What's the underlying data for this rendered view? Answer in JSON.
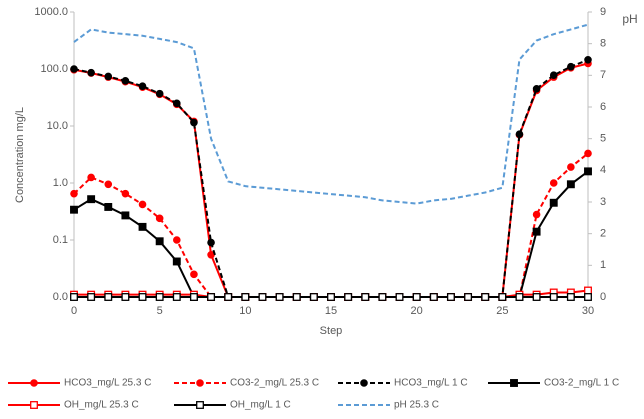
{
  "chart_data": {
    "type": "line",
    "y_label": "Concentration mg/L",
    "y2_label": "pH",
    "x_label": "Step",
    "x": [
      0,
      1,
      2,
      3,
      4,
      5,
      6,
      7,
      8,
      9,
      10,
      11,
      12,
      13,
      14,
      15,
      16,
      17,
      18,
      19,
      20,
      21,
      22,
      23,
      24,
      25,
      26,
      27,
      28,
      29,
      30
    ],
    "xlim": [
      0,
      30
    ],
    "xticks": [
      0,
      5,
      10,
      15,
      20,
      25,
      30
    ],
    "ylim": [
      0.01,
      1000
    ],
    "log_y": true,
    "yticks": [
      {
        "value": 0.01,
        "label": "0.0"
      },
      {
        "value": 0.1,
        "label": "0.1"
      },
      {
        "value": 1,
        "label": "1.0"
      },
      {
        "value": 10,
        "label": "10.0"
      },
      {
        "value": 100,
        "label": "100.0"
      },
      {
        "value": 1000,
        "label": "1000.0"
      }
    ],
    "y2lim": [
      0,
      9
    ],
    "y2ticks": [
      0,
      1,
      2,
      3,
      4,
      5,
      6,
      7,
      8,
      9
    ],
    "series": [
      {
        "name": "HCO3_mg/L 25.3 C",
        "color": "#ff0000",
        "dash": false,
        "marker": "circle",
        "marker_open": false,
        "values": [
          97,
          85,
          72,
          60,
          48,
          36,
          24,
          12,
          0.055,
          0.01,
          0.01,
          0.01,
          0.01,
          0.01,
          0.01,
          0.01,
          0.01,
          0.01,
          0.01,
          0.01,
          0.01,
          0.01,
          0.01,
          0.01,
          0.01,
          0.01,
          7,
          42,
          72,
          105,
          125
        ]
      },
      {
        "name": "CO3-2_mg/L 25.3 C",
        "color": "#ff0000",
        "dash": true,
        "marker": "circle",
        "marker_open": false,
        "values": [
          0.65,
          1.25,
          0.95,
          0.65,
          0.42,
          0.24,
          0.1,
          0.025,
          0.01,
          0.01,
          0.01,
          0.01,
          0.01,
          0.01,
          0.01,
          0.01,
          0.01,
          0.01,
          0.01,
          0.01,
          0.01,
          0.01,
          0.01,
          0.01,
          0.01,
          0.01,
          0.01,
          0.28,
          1.0,
          1.9,
          3.3
        ]
      },
      {
        "name": "HCO3_mg/L 1 C",
        "color": "#000000",
        "dash": true,
        "marker": "circle",
        "marker_open": false,
        "values": [
          100,
          86,
          74,
          62,
          50,
          37,
          25,
          11.5,
          0.09,
          0.01,
          0.01,
          0.01,
          0.01,
          0.01,
          0.01,
          0.01,
          0.01,
          0.01,
          0.01,
          0.01,
          0.01,
          0.01,
          0.01,
          0.01,
          0.01,
          0.01,
          7.2,
          45,
          78,
          110,
          145
        ]
      },
      {
        "name": "CO3-2_mg/L 1 C",
        "color": "#000000",
        "dash": false,
        "marker": "square",
        "marker_open": false,
        "values": [
          0.34,
          0.52,
          0.38,
          0.27,
          0.17,
          0.095,
          0.042,
          0.01,
          0.01,
          0.01,
          0.01,
          0.01,
          0.01,
          0.01,
          0.01,
          0.01,
          0.01,
          0.01,
          0.01,
          0.01,
          0.01,
          0.01,
          0.01,
          0.01,
          0.01,
          0.01,
          0.01,
          0.14,
          0.45,
          0.95,
          1.6
        ]
      },
      {
        "name": "OH_mg/L 25.3 C",
        "color": "#ff0000",
        "dash": false,
        "marker": "square",
        "marker_open": true,
        "values": [
          0.011,
          0.011,
          0.011,
          0.011,
          0.011,
          0.011,
          0.011,
          0.011,
          0.01,
          0.01,
          0.01,
          0.01,
          0.01,
          0.01,
          0.01,
          0.01,
          0.01,
          0.01,
          0.01,
          0.01,
          0.01,
          0.01,
          0.01,
          0.01,
          0.01,
          0.01,
          0.011,
          0.011,
          0.012,
          0.012,
          0.013
        ]
      },
      {
        "name": "OH_mg/L 1 C",
        "color": "#000000",
        "dash": false,
        "marker": "square",
        "marker_open": true,
        "values": [
          0.01,
          0.01,
          0.01,
          0.01,
          0.01,
          0.01,
          0.01,
          0.01,
          0.01,
          0.01,
          0.01,
          0.01,
          0.01,
          0.01,
          0.01,
          0.01,
          0.01,
          0.01,
          0.01,
          0.01,
          0.01,
          0.01,
          0.01,
          0.01,
          0.01,
          0.01,
          0.01,
          0.01,
          0.01,
          0.01,
          0.01
        ]
      },
      {
        "name": "pH 25.3 C",
        "color": "#5b9bd5",
        "dash": true,
        "marker": "none",
        "marker_open": false,
        "axis": "y2",
        "values": [
          8.05,
          8.45,
          8.35,
          8.3,
          8.25,
          8.15,
          8.05,
          7.85,
          5.0,
          3.65,
          3.5,
          3.45,
          3.4,
          3.35,
          3.3,
          3.25,
          3.2,
          3.15,
          3.05,
          3.0,
          2.95,
          3.05,
          3.1,
          3.2,
          3.3,
          3.45,
          7.5,
          8.1,
          8.3,
          8.45,
          8.6
        ]
      }
    ]
  }
}
